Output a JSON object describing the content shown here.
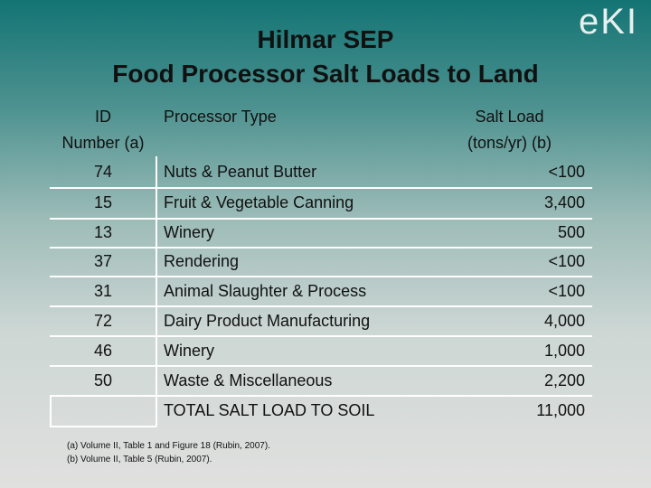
{
  "logo": "eKI",
  "header": {
    "title": [
      "Hilmar SEP",
      "Food Processor Salt Loads to Land"
    ]
  },
  "table": {
    "columns": [
      [
        "ID",
        "Number (a)"
      ],
      [
        "Processor Type"
      ],
      [
        "Salt Load",
        "(tons/yr) (b)"
      ]
    ],
    "rows": [
      [
        "74",
        "Nuts & Peanut Butter",
        "<100"
      ],
      [
        "15",
        "Fruit & Vegetable Canning",
        "3,400"
      ],
      [
        "13",
        "Winery",
        "500"
      ],
      [
        "37",
        "Rendering",
        "<100"
      ],
      [
        "31",
        "Animal Slaughter & Process",
        "<100"
      ],
      [
        "72",
        "Dairy Product Manufacturing",
        "4,000"
      ],
      [
        "46",
        "Winery",
        "1,000"
      ],
      [
        "50",
        "Waste & Miscellaneous",
        "2,200"
      ]
    ],
    "total": [
      "TOTAL SALT LOAD TO SOIL",
      "11,000"
    ]
  },
  "footnotes": [
    "(a) Volume II, Table 1 and Figure 18 (Rubin, 2007).",
    "(b) Volume II, Table 5 (Rubin, 2007)."
  ]
}
